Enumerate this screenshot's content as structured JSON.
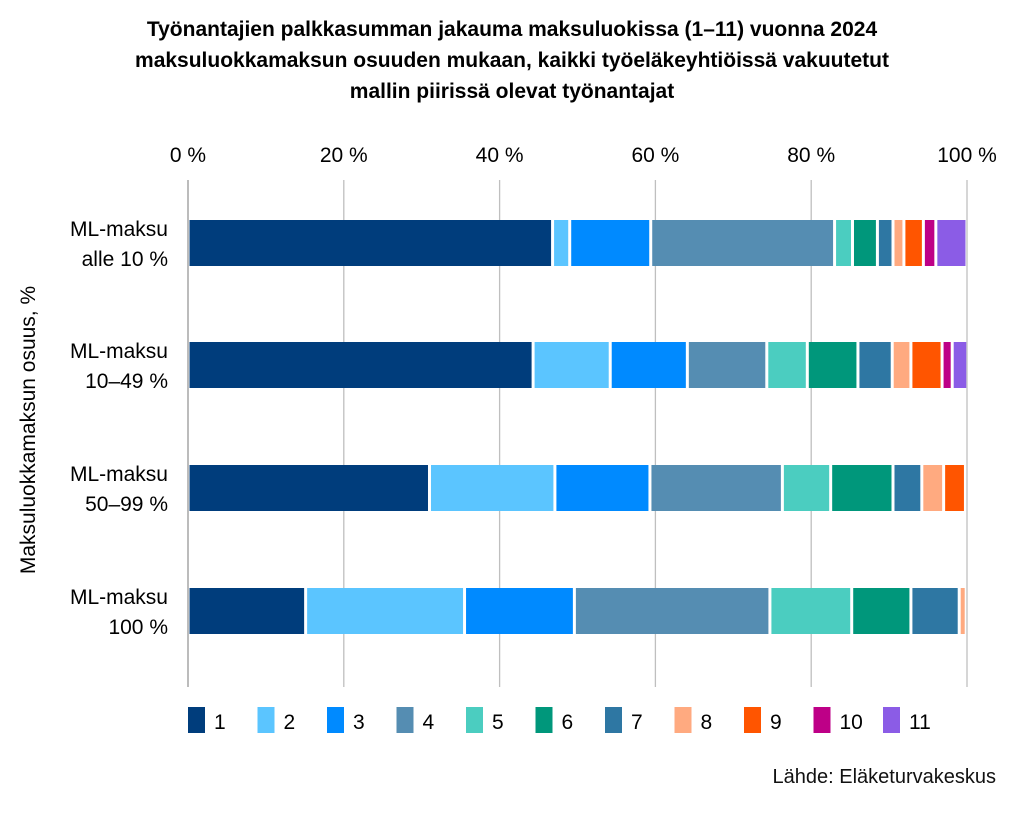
{
  "chart_data": {
    "type": "bar",
    "orientation": "horizontal",
    "stacked": "percent",
    "title_lines": [
      "Työnantajien palkkasumman jakauma maksuluokissa (1–11) vuonna 2024",
      "maksuluokkamaksun osuuden mukaan, kaikki työeläkeyhtiöissä vakuutetut",
      "mallin piirissä olevat työnantajat"
    ],
    "xlabel": "",
    "ylabel": "Maksuluokkamaksun osuus, %",
    "xlim": [
      0,
      100
    ],
    "x_ticks": [
      0,
      20,
      40,
      60,
      80,
      100
    ],
    "x_tick_labels": [
      "0 %",
      "20 %",
      "40 %",
      "60 %",
      "80 %",
      "100 %"
    ],
    "x_axis_position": "top",
    "grid": true,
    "legend_position": "bottom",
    "categories": [
      [
        "ML-maksu",
        "alle 10 %"
      ],
      [
        "ML-maksu",
        "10–49 %"
      ],
      [
        "ML-maksu",
        "50–99 %"
      ],
      [
        "ML-maksu",
        "100 %"
      ]
    ],
    "series": [
      {
        "name": "1",
        "color": "#003D7C",
        "values": [
          46.8,
          44.3,
          31.0,
          15.1
        ]
      },
      {
        "name": "2",
        "color": "#5BC5FF",
        "values": [
          2.2,
          9.9,
          16.1,
          20.4
        ]
      },
      {
        "name": "3",
        "color": "#008AFF",
        "values": [
          10.4,
          9.9,
          12.2,
          14.1
        ]
      },
      {
        "name": "4",
        "color": "#558DB2",
        "values": [
          23.6,
          10.2,
          17.0,
          25.1
        ]
      },
      {
        "name": "5",
        "color": "#4BCDC0",
        "values": [
          2.3,
          5.2,
          6.2,
          10.5
        ]
      },
      {
        "name": "6",
        "color": "#00977B",
        "values": [
          3.2,
          6.5,
          8.0,
          7.6
        ]
      },
      {
        "name": "7",
        "color": "#2E77A3",
        "values": [
          2.0,
          4.4,
          3.7,
          6.2
        ]
      },
      {
        "name": "8",
        "color": "#FFAA80",
        "values": [
          1.4,
          2.4,
          2.8,
          0.9
        ]
      },
      {
        "name": "9",
        "color": "#FF5500",
        "values": [
          2.5,
          4.0,
          2.8,
          0.0
        ]
      },
      {
        "name": "10",
        "color": "#BE0087",
        "values": [
          1.6,
          1.3,
          0.1,
          0.0
        ]
      },
      {
        "name": "11",
        "color": "#8B5CE6",
        "values": [
          4.0,
          2.0,
          0.1,
          0.0
        ]
      }
    ],
    "source": "Lähde: Eläketurvakeskus"
  }
}
